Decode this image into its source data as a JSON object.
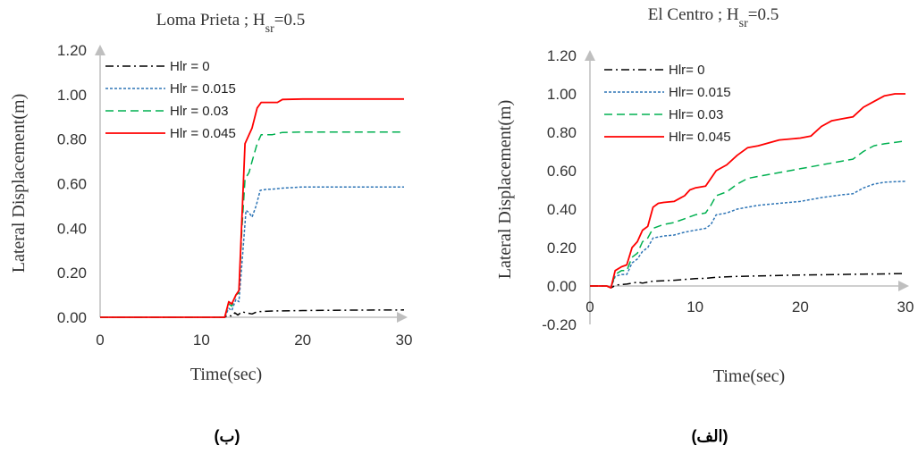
{
  "chart_data": [
    {
      "type": "line",
      "title": {
        "main": "Loma Prieta ; H",
        "sub": "sr",
        "rest": "=0.5"
      },
      "xlabel": "Time(sec)",
      "ylabel": "Lateral Displacement(m)",
      "xlim": [
        0,
        30
      ],
      "ylim": [
        0,
        1.2
      ],
      "x_ticks": [
        "0",
        "10",
        "20",
        "30"
      ],
      "y_ticks": [
        "0.00",
        "0.20",
        "0.40",
        "0.60",
        "0.80",
        "1.00",
        "1.20"
      ],
      "legend_position": "top-left",
      "caption": "(ب)",
      "series": [
        {
          "name": "Hlr = 0",
          "color": "#000000",
          "dash": "dashdot",
          "points": [
            [
              0,
              0
            ],
            [
              12.3,
              0
            ],
            [
              12.6,
              0.01
            ],
            [
              13.0,
              0.005
            ],
            [
              13.3,
              0.02
            ],
            [
              13.6,
              0.01
            ],
            [
              14.0,
              0.025
            ],
            [
              14.4,
              0.02
            ],
            [
              15.0,
              0.015
            ],
            [
              15.5,
              0.025
            ],
            [
              17,
              0.028
            ],
            [
              20,
              0.03
            ],
            [
              25,
              0.032
            ],
            [
              30,
              0.033
            ]
          ]
        },
        {
          "name": "Hlr = 0.015",
          "color": "#2e75b6",
          "dash": "dotted",
          "points": [
            [
              0,
              0
            ],
            [
              12.3,
              0
            ],
            [
              12.7,
              0.04
            ],
            [
              13.0,
              0.03
            ],
            [
              13.4,
              0.08
            ],
            [
              13.7,
              0.07
            ],
            [
              14.1,
              0.3
            ],
            [
              14.4,
              0.48
            ],
            [
              14.7,
              0.47
            ],
            [
              15.0,
              0.45
            ],
            [
              15.4,
              0.5
            ],
            [
              15.8,
              0.57
            ],
            [
              16.5,
              0.575
            ],
            [
              17,
              0.575
            ],
            [
              18,
              0.58
            ],
            [
              20,
              0.585
            ],
            [
              30,
              0.585
            ]
          ]
        },
        {
          "name": "Hlr = 0.03",
          "color": "#00b050",
          "dash": "dashed",
          "points": [
            [
              0,
              0
            ],
            [
              12.3,
              0
            ],
            [
              12.7,
              0.06
            ],
            [
              13.0,
              0.05
            ],
            [
              13.4,
              0.1
            ],
            [
              13.7,
              0.11
            ],
            [
              14.0,
              0.4
            ],
            [
              14.3,
              0.62
            ],
            [
              14.7,
              0.65
            ],
            [
              15.0,
              0.7
            ],
            [
              15.5,
              0.78
            ],
            [
              15.9,
              0.82
            ],
            [
              17,
              0.82
            ],
            [
              18,
              0.83
            ],
            [
              20,
              0.832
            ],
            [
              30,
              0.832
            ]
          ]
        },
        {
          "name": "Hlr = 0.045",
          "color": "#ff0000",
          "dash": "solid",
          "points": [
            [
              0,
              0
            ],
            [
              12.3,
              0
            ],
            [
              12.7,
              0.07
            ],
            [
              13.0,
              0.06
            ],
            [
              13.4,
              0.1
            ],
            [
              13.7,
              0.12
            ],
            [
              14.0,
              0.45
            ],
            [
              14.3,
              0.78
            ],
            [
              14.7,
              0.82
            ],
            [
              15.0,
              0.85
            ],
            [
              15.5,
              0.94
            ],
            [
              15.9,
              0.965
            ],
            [
              17,
              0.965
            ],
            [
              17.5,
              0.965
            ],
            [
              18,
              0.978
            ],
            [
              20,
              0.98
            ],
            [
              30,
              0.98
            ]
          ]
        }
      ]
    },
    {
      "type": "line",
      "title": {
        "main": "El Centro ; H",
        "sub": "sr",
        "rest": "=0.5"
      },
      "xlabel": "Time(sec)",
      "ylabel": "Lateral Displacement(m)",
      "xlim": [
        0,
        30
      ],
      "ylim": [
        -0.2,
        1.2
      ],
      "x_ticks": [
        "0",
        "10",
        "20",
        "30"
      ],
      "y_ticks": [
        "-0.20",
        "0.00",
        "0.20",
        "0.40",
        "0.60",
        "0.80",
        "1.00",
        "1.20"
      ],
      "legend_position": "top-left",
      "caption": "(الف)",
      "series": [
        {
          "name": "Hlr= 0",
          "color": "#000000",
          "dash": "dashdot",
          "points": [
            [
              0,
              0
            ],
            [
              1.6,
              0
            ],
            [
              2.0,
              -0.01
            ],
            [
              2.5,
              0.005
            ],
            [
              3.5,
              0.01
            ],
            [
              4.5,
              0.02
            ],
            [
              5,
              0.015
            ],
            [
              6,
              0.025
            ],
            [
              8,
              0.03
            ],
            [
              10,
              0.038
            ],
            [
              11,
              0.04
            ],
            [
              12,
              0.045
            ],
            [
              14,
              0.05
            ],
            [
              16,
              0.052
            ],
            [
              18,
              0.055
            ],
            [
              20,
              0.057
            ],
            [
              22,
              0.058
            ],
            [
              24,
              0.06
            ],
            [
              26,
              0.062
            ],
            [
              28,
              0.063
            ],
            [
              30,
              0.065
            ]
          ]
        },
        {
          "name": "Hlr= 0.015",
          "color": "#2e75b6",
          "dash": "dotted",
          "points": [
            [
              0,
              0
            ],
            [
              1.6,
              0
            ],
            [
              2.0,
              -0.01
            ],
            [
              2.4,
              0.05
            ],
            [
              3.0,
              0.06
            ],
            [
              3.5,
              0.06
            ],
            [
              4.0,
              0.12
            ],
            [
              4.5,
              0.14
            ],
            [
              5,
              0.18
            ],
            [
              5.5,
              0.2
            ],
            [
              6,
              0.25
            ],
            [
              7,
              0.26
            ],
            [
              8,
              0.265
            ],
            [
              9,
              0.28
            ],
            [
              10,
              0.29
            ],
            [
              11,
              0.3
            ],
            [
              11.5,
              0.32
            ],
            [
              12,
              0.37
            ],
            [
              13,
              0.38
            ],
            [
              14,
              0.4
            ],
            [
              15,
              0.41
            ],
            [
              16,
              0.42
            ],
            [
              18,
              0.43
            ],
            [
              20,
              0.44
            ],
            [
              22,
              0.46
            ],
            [
              24,
              0.475
            ],
            [
              25,
              0.48
            ],
            [
              26,
              0.51
            ],
            [
              27,
              0.53
            ],
            [
              28,
              0.54
            ],
            [
              30,
              0.545
            ]
          ]
        },
        {
          "name": "Hlr= 0.03",
          "color": "#00b050",
          "dash": "dashed",
          "points": [
            [
              0,
              0
            ],
            [
              1.6,
              0
            ],
            [
              2.0,
              -0.01
            ],
            [
              2.4,
              0.06
            ],
            [
              3.0,
              0.08
            ],
            [
              3.5,
              0.08
            ],
            [
              4.0,
              0.15
            ],
            [
              4.5,
              0.17
            ],
            [
              5,
              0.23
            ],
            [
              5.5,
              0.25
            ],
            [
              6,
              0.3
            ],
            [
              7,
              0.32
            ],
            [
              8,
              0.33
            ],
            [
              9,
              0.35
            ],
            [
              10,
              0.37
            ],
            [
              11,
              0.38
            ],
            [
              11.5,
              0.42
            ],
            [
              12,
              0.47
            ],
            [
              13,
              0.49
            ],
            [
              14,
              0.53
            ],
            [
              15,
              0.56
            ],
            [
              16,
              0.57
            ],
            [
              18,
              0.59
            ],
            [
              20,
              0.61
            ],
            [
              22,
              0.63
            ],
            [
              24,
              0.65
            ],
            [
              25,
              0.66
            ],
            [
              26,
              0.7
            ],
            [
              27,
              0.73
            ],
            [
              28,
              0.74
            ],
            [
              30,
              0.755
            ]
          ]
        },
        {
          "name": "Hlr= 0.045",
          "color": "#ff0000",
          "dash": "solid",
          "points": [
            [
              0,
              0
            ],
            [
              1.6,
              0
            ],
            [
              2.0,
              -0.01
            ],
            [
              2.4,
              0.08
            ],
            [
              3.0,
              0.1
            ],
            [
              3.5,
              0.11
            ],
            [
              4.0,
              0.2
            ],
            [
              4.5,
              0.23
            ],
            [
              5,
              0.29
            ],
            [
              5.5,
              0.31
            ],
            [
              6,
              0.41
            ],
            [
              6.5,
              0.43
            ],
            [
              7,
              0.435
            ],
            [
              8,
              0.44
            ],
            [
              9,
              0.47
            ],
            [
              9.5,
              0.5
            ],
            [
              10,
              0.51
            ],
            [
              11,
              0.52
            ],
            [
              11.5,
              0.56
            ],
            [
              12,
              0.6
            ],
            [
              13,
              0.63
            ],
            [
              14,
              0.68
            ],
            [
              15,
              0.72
            ],
            [
              16,
              0.73
            ],
            [
              18,
              0.76
            ],
            [
              20,
              0.77
            ],
            [
              21,
              0.78
            ],
            [
              22,
              0.83
            ],
            [
              23,
              0.86
            ],
            [
              24,
              0.87
            ],
            [
              25,
              0.88
            ],
            [
              26,
              0.93
            ],
            [
              27,
              0.96
            ],
            [
              28,
              0.99
            ],
            [
              29,
              1.0
            ],
            [
              30,
              1.0
            ]
          ]
        }
      ]
    }
  ]
}
